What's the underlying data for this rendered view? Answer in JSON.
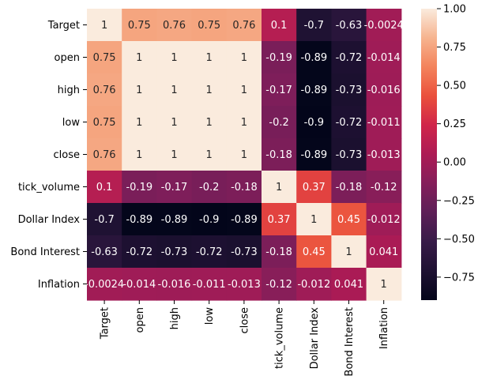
{
  "chart_data": {
    "type": "heatmap",
    "title": "",
    "xlabel": "",
    "ylabel": "",
    "labels": [
      "Target",
      "open",
      "high",
      "low",
      "close",
      "tick_volume",
      "Dollar Index",
      "Bond Interest",
      "Inflation"
    ],
    "matrix": [
      [
        1,
        0.75,
        0.76,
        0.75,
        0.76,
        0.1,
        -0.7,
        -0.63,
        -0.0024
      ],
      [
        0.75,
        1,
        1,
        1,
        1,
        -0.19,
        -0.89,
        -0.72,
        -0.014
      ],
      [
        0.76,
        1,
        1,
        1,
        1,
        -0.17,
        -0.89,
        -0.73,
        -0.016
      ],
      [
        0.75,
        1,
        1,
        1,
        1,
        -0.2,
        -0.9,
        -0.72,
        -0.011
      ],
      [
        0.76,
        1,
        1,
        1,
        1,
        -0.18,
        -0.89,
        -0.73,
        -0.013
      ],
      [
        0.1,
        -0.19,
        -0.17,
        -0.2,
        -0.18,
        1,
        0.37,
        -0.18,
        -0.12
      ],
      [
        -0.7,
        -0.89,
        -0.89,
        -0.9,
        -0.89,
        0.37,
        1,
        0.45,
        -0.012
      ],
      [
        -0.63,
        -0.72,
        -0.73,
        -0.72,
        -0.73,
        -0.18,
        0.45,
        1,
        0.041
      ],
      [
        -0.0024,
        -0.014,
        -0.016,
        -0.011,
        -0.013,
        -0.12,
        -0.012,
        0.041,
        1
      ]
    ],
    "colorbar": {
      "range": [
        -0.9,
        1.0
      ],
      "ticks": [
        1.0,
        0.75,
        0.5,
        0.25,
        0.0,
        -0.25,
        -0.5,
        -0.75
      ],
      "tick_labels": [
        "1.00",
        "0.75",
        "0.50",
        "0.25",
        "0.00",
        "−0.25",
        "−0.50",
        "−0.75"
      ],
      "colormap": "rocket"
    },
    "grid": false,
    "annotations": true
  }
}
